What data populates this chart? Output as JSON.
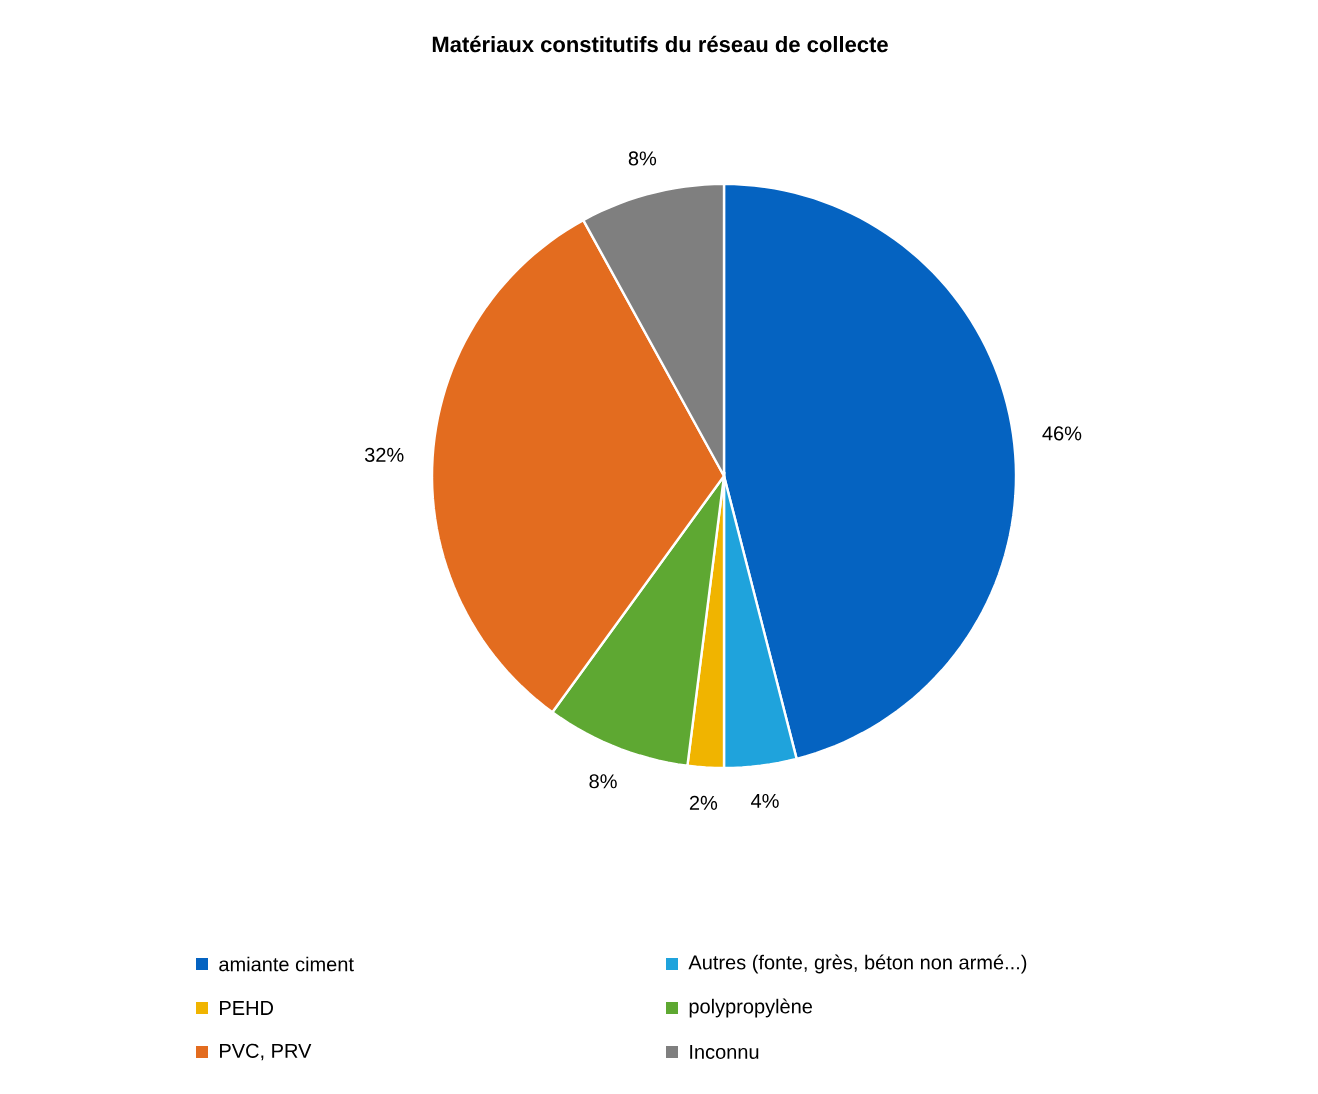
{
  "chart_data": {
    "type": "pie",
    "title": "Matériaux constitutifs du réseau de collecte",
    "categories": [
      "amiante ciment",
      "Autres (fonte, grès, béton non armé...)",
      "PEHD",
      "polypropylène",
      "PVC, PRV",
      "Inconnu"
    ],
    "values": [
      46,
      4,
      2,
      8,
      32,
      8
    ],
    "value_labels": [
      "46%",
      "4%",
      "2%",
      "8%",
      "32%",
      "8%"
    ],
    "colors": [
      "#0563c1",
      "#1fa3dc",
      "#f0b400",
      "#5ea832",
      "#e36c1f",
      "#7f7f7f"
    ],
    "legend": "bottom"
  }
}
